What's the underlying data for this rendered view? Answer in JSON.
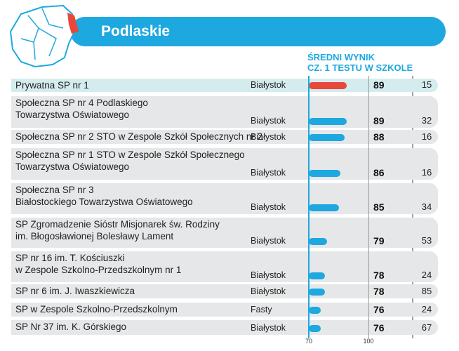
{
  "chart_data": {
    "type": "bar",
    "orientation": "horizontal",
    "title": "Podlaskie",
    "value_axis_title": [
      "ŚREDNI WYNIK",
      "CZ. 1 TESTU W SZKOLE"
    ],
    "categories": [
      "Prywatna SP nr 1",
      "Społeczna SP nr 4 Podlaskiego\nTowarzystwa Oświatowego",
      "Społeczna SP nr 2 STO w Zespole Szkół Społecznych nr 2",
      "Społeczna SP nr 1 STO w Zespole Szkół Społecznego\nTowarzystwa Oświatowego",
      "Społeczna SP nr 3\nBiałostockiego Towarzystwa Oświatowego",
      "SP Zgromadzenie Sióstr Misjonarek św. Rodziny\nim. Błogosławionej Bolesławy Lament",
      "SP nr 16 im. T. Kościuszki\nw Zespole Szkolno-Przedszkolnym nr 1",
      "SP nr 6 im. J. Iwaszkiewicza",
      "SP w Zespole Szkolno-Przedszkolnym",
      "SP Nr 37 im. K. Górskiego"
    ],
    "cities": [
      "Białystok",
      "Białystok",
      "Białystok",
      "Białystok",
      "Białystok",
      "Białystok",
      "Białystok",
      "Białystok",
      "Fasty",
      "Białystok"
    ],
    "values": [
      89,
      89,
      88,
      86,
      85,
      79,
      78,
      78,
      76,
      76
    ],
    "ranks": [
      15,
      32,
      16,
      16,
      34,
      53,
      24,
      85,
      24,
      67
    ],
    "colors": [
      "#e8483a",
      "#1ea8e0",
      "#1ea8e0",
      "#1ea8e0",
      "#1ea8e0",
      "#1ea8e0",
      "#1ea8e0",
      "#1ea8e0",
      "#1ea8e0",
      "#1ea8e0"
    ],
    "xlim": [
      70,
      100
    ],
    "xticks": [
      70,
      100
    ]
  }
}
